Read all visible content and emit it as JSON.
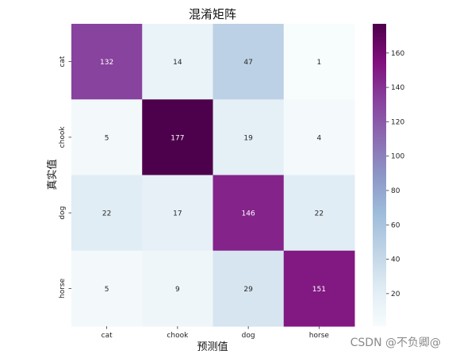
{
  "chart_data": {
    "type": "heatmap",
    "title": "混淆矩阵",
    "xlabel": "预测值",
    "ylabel": "真实值",
    "x_categories": [
      "cat",
      "chook",
      "dog",
      "horse"
    ],
    "y_categories": [
      "cat",
      "chook",
      "dog",
      "horse"
    ],
    "values": [
      [
        132,
        14,
        47,
        1
      ],
      [
        5,
        177,
        19,
        4
      ],
      [
        22,
        17,
        146,
        22
      ],
      [
        5,
        9,
        29,
        151
      ]
    ],
    "colormap": "BuPu",
    "color_range": [
      1,
      177
    ],
    "colorbar_ticks": [
      20,
      40,
      60,
      80,
      100,
      120,
      140,
      160
    ],
    "colors": {
      "cmap_stops": [
        "#f7fcfd",
        "#e0ecf4",
        "#bfd3e6",
        "#9ebcda",
        "#8c96c6",
        "#8c6bb1",
        "#88419d",
        "#810f7c",
        "#4d004b"
      ]
    }
  },
  "watermark": "CSDN @不负卿@"
}
